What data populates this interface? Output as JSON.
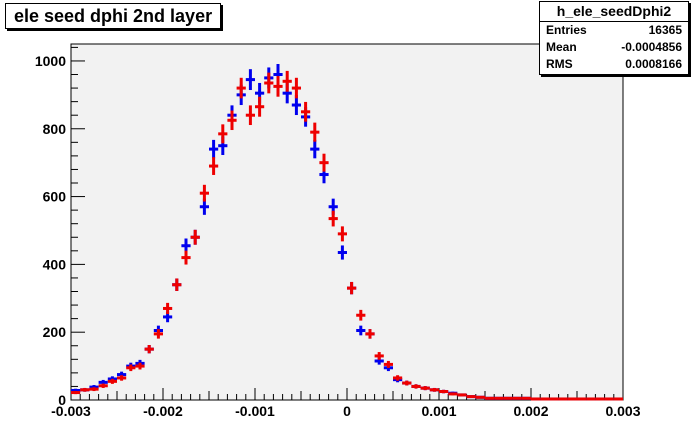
{
  "title": "ele seed dphi 2nd layer",
  "stats": {
    "name": "h_ele_seedDphi2",
    "rows": [
      {
        "label": "Entries",
        "value": "16365"
      },
      {
        "label": "Mean",
        "value": "-0.0004856"
      },
      {
        "label": "RMS",
        "value": "0.0008166"
      }
    ]
  },
  "colors": {
    "frame_bg": "#f2f2f2",
    "series_blue": "#0000ee",
    "series_red": "#ee0000"
  },
  "chart_data": {
    "type": "scatter",
    "title": "ele seed dphi 2nd layer",
    "xlabel": "",
    "ylabel": "",
    "xlim": [
      -0.003,
      0.003
    ],
    "ylim": [
      0,
      1050
    ],
    "bin_width": 0.0001,
    "grid": false,
    "xticks": [
      -0.003,
      -0.002,
      -0.001,
      0,
      0.001,
      0.002,
      0.003
    ],
    "xtick_labels": [
      "-0.003",
      "-0.002",
      "-0.001",
      "0",
      "0.001",
      "0.002",
      "0.003"
    ],
    "yticks": [
      0,
      200,
      400,
      600,
      800,
      1000
    ],
    "ytick_labels": [
      "0",
      "200",
      "400",
      "600",
      "800",
      "1000"
    ],
    "x": [
      -0.00295,
      -0.00285,
      -0.00275,
      -0.00265,
      -0.00255,
      -0.00245,
      -0.00235,
      -0.00225,
      -0.00215,
      -0.00205,
      -0.00195,
      -0.00185,
      -0.00175,
      -0.00165,
      -0.00155,
      -0.00145,
      -0.00135,
      -0.00125,
      -0.00115,
      -0.00105,
      -0.00095,
      -0.00085,
      -0.00075,
      -0.00065,
      -0.00055,
      -0.00045,
      -0.00035,
      -0.00025,
      -0.00015,
      -5e-05,
      5e-05,
      0.00015,
      0.00025,
      0.00035,
      0.00045,
      0.00055,
      0.00065,
      0.00075,
      0.00085,
      0.00095,
      0.00105,
      0.00115,
      0.00125,
      0.00135,
      0.00145,
      0.00155,
      0.00165,
      0.00175,
      0.00185,
      0.00195,
      0.00205,
      0.00215,
      0.00225,
      0.00235,
      0.00245,
      0.00255,
      0.00265,
      0.00275,
      0.00285,
      0.00295
    ],
    "series": [
      {
        "values": [
          28,
          30,
          38,
          52,
          62,
          75,
          100,
          108,
          150,
          205,
          245,
          340,
          455,
          480,
          570,
          740,
          750,
          840,
          900,
          945,
          905,
          950,
          960,
          905,
          870,
          835,
          740,
          665,
          570,
          435,
          330,
          205,
          195,
          115,
          95,
          60,
          50,
          40,
          35,
          30,
          25,
          20,
          15,
          10,
          8,
          5,
          5,
          5,
          5,
          5,
          3,
          3,
          3,
          3,
          3,
          3,
          3,
          3,
          3,
          3
        ]
      },
      {
        "values": [
          22,
          30,
          32,
          42,
          55,
          65,
          95,
          100,
          150,
          195,
          270,
          340,
          420,
          480,
          610,
          690,
          785,
          825,
          920,
          840,
          865,
          935,
          925,
          940,
          920,
          850,
          790,
          700,
          535,
          490,
          330,
          250,
          195,
          130,
          105,
          65,
          50,
          40,
          35,
          30,
          25,
          18,
          15,
          10,
          8,
          5,
          5,
          5,
          5,
          5,
          3,
          3,
          3,
          3,
          3,
          3,
          3,
          3,
          3,
          3
        ]
      }
    ]
  }
}
